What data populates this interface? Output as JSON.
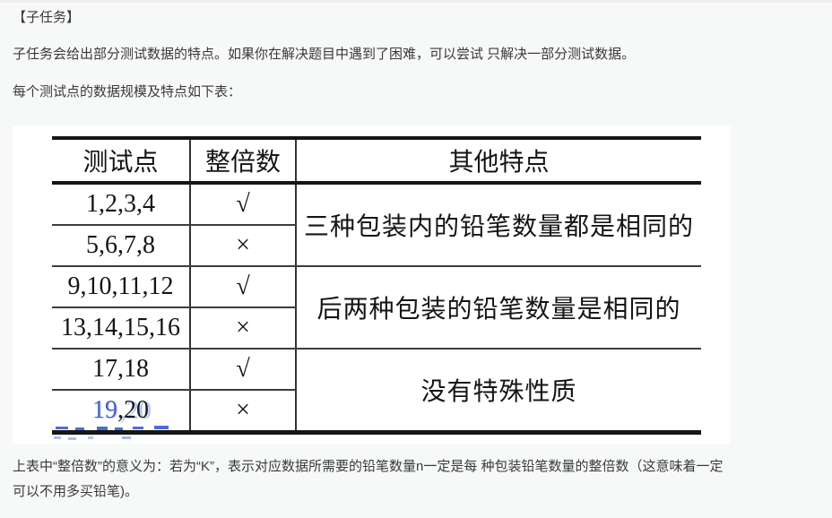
{
  "page": {
    "heading": "【子任务】",
    "para1": "子任务会给出部分测试数据的特点。如果你在解决题目中遇到了困难，可以尝试 只解决一部分测试数据。",
    "para2": "每个测试点的数据规模及特点如下表：",
    "footnote": "上表中“整倍数”的意义为：若为“K”，表示对应数据所需要的铅笔数量n一定是每 种包装铅笔数量的整倍数（这意味着一定\n可以不用多买铅笔)。"
  },
  "table": {
    "headers": [
      "测试点",
      "整倍数",
      "其他特点"
    ],
    "groups": [
      {
        "feature": "三种包装内的铅笔数量都是相同的",
        "rows": [
          {
            "tests": "1,2,3,4",
            "multiple": "√"
          },
          {
            "tests": "5,6,7,8",
            "multiple": "×"
          }
        ]
      },
      {
        "feature": "后两种包装的铅笔数量是相同的",
        "rows": [
          {
            "tests": "9,10,11,12",
            "multiple": "√"
          },
          {
            "tests": "13,14,15,16",
            "multiple": "×"
          }
        ]
      },
      {
        "feature": "没有特殊性质",
        "rows": [
          {
            "tests": "17,18",
            "multiple": "√"
          },
          {
            "tests_blue": "19",
            "tests_rest": ",20",
            "multiple": "×"
          }
        ]
      }
    ]
  },
  "colors": {
    "page_background": "#f7f8f8",
    "table_image_background": "#ffffff",
    "table_ink": "#141414",
    "body_text": "#3a3a3a",
    "scan_artifact_blue": "#4a6fd0"
  }
}
